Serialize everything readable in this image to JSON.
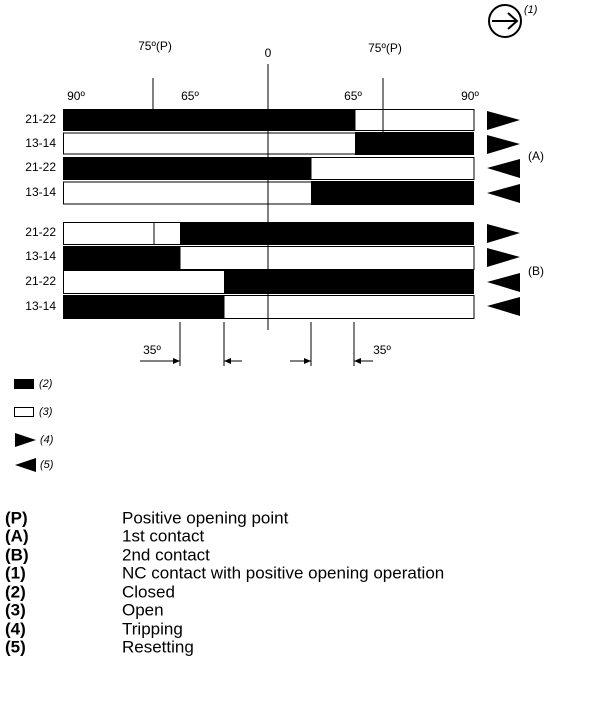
{
  "angles_top": [
    "75º(P)",
    "0",
    "75º(P)"
  ],
  "angles_scale": [
    "90º",
    "65º",
    "65º",
    "90º"
  ],
  "rows": [
    "21-22",
    "13-14",
    "21-22",
    "13-14",
    "21-22",
    "13-14",
    "21-22",
    "13-14"
  ],
  "groups": [
    "(A)",
    "(B)"
  ],
  "offsets": [
    "35º",
    "35º"
  ],
  "icon_label": "(1)",
  "legend": [
    "(2)",
    "(3)",
    "(4)",
    "(5)"
  ],
  "key": [
    {
      "code": "(P)",
      "text": "Positive opening point"
    },
    {
      "code": "(A)",
      "text": "1st contact"
    },
    {
      "code": "(B)",
      "text": "2nd contact"
    },
    {
      "code": "(1)",
      "text": "NC contact with positive opening operation"
    },
    {
      "code": "(2)",
      "text": "Closed"
    },
    {
      "code": "(3)",
      "text": "Open"
    },
    {
      "code": "(4)",
      "text": "Tripping"
    },
    {
      "code": "(5)",
      "text": "Resetting"
    }
  ]
}
